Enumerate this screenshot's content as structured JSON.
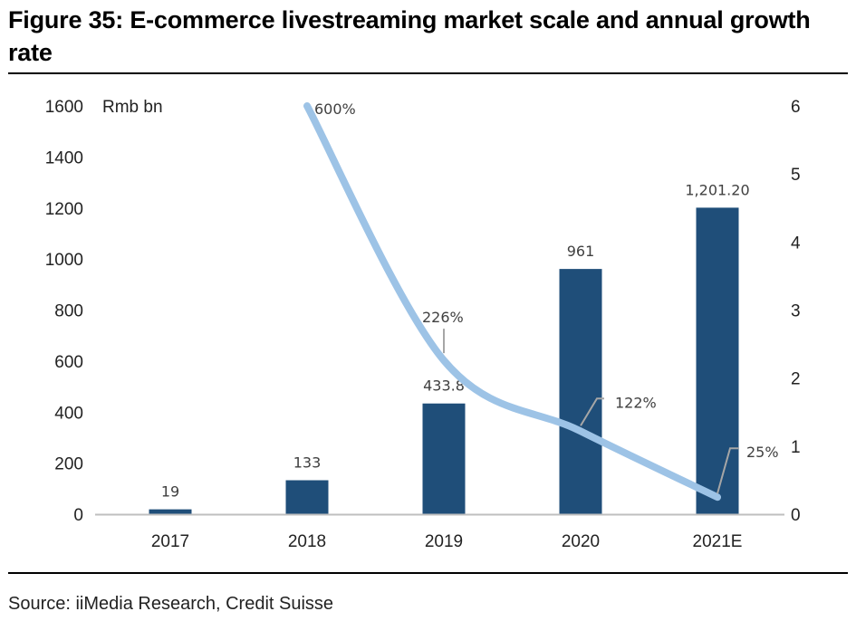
{
  "figure": {
    "title": "Figure 35: E-commerce livestreaming market scale and annual growth rate",
    "source": "Source: iiMedia Research, Credit Suisse"
  },
  "chart_data": {
    "type": "bar",
    "title": "Figure 35: E-commerce livestreaming market scale and annual growth rate",
    "categories": [
      "2017",
      "2018",
      "2019",
      "2020",
      "2021E"
    ],
    "series": [
      {
        "name": "Market scale",
        "type": "bar",
        "axis": "left",
        "unit": "Rmb bn",
        "color": "#1f4e79",
        "values": [
          19,
          133,
          433.8,
          961,
          1201.2
        ],
        "labels": [
          "19",
          "133",
          "433.8",
          "961",
          "1,201.20"
        ]
      },
      {
        "name": "Annual growth rate",
        "type": "line",
        "axis": "right",
        "color": "#9dc3e6",
        "values": [
          null,
          6.0,
          2.26,
          1.22,
          0.25
        ],
        "labels": [
          null,
          "600%",
          "226%",
          "122%",
          "25%"
        ]
      }
    ],
    "ylabel": "Rmb bn",
    "ylim": [
      0,
      1600
    ],
    "yticks": [
      "0",
      "200",
      "400",
      "600",
      "800",
      "1000",
      "1200",
      "1400",
      "1600"
    ],
    "y2lim": [
      0,
      6
    ],
    "y2ticks": [
      "0",
      "1",
      "2",
      "3",
      "4",
      "5",
      "6"
    ],
    "xlabel": "",
    "grid": false,
    "legend": "none"
  }
}
